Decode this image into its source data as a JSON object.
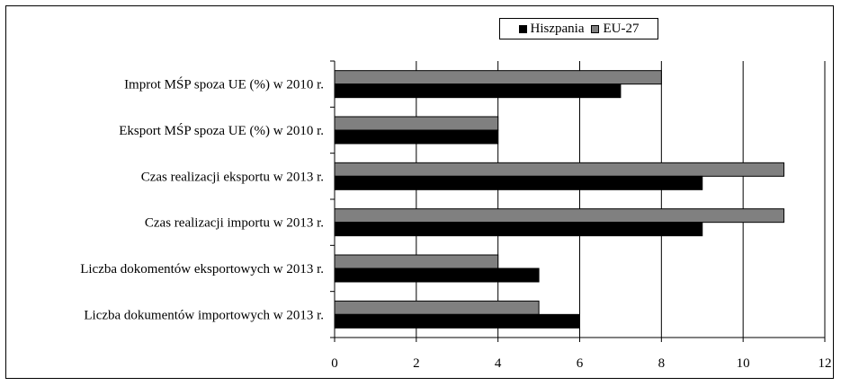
{
  "chart_data": {
    "type": "bar",
    "orientation": "horizontal",
    "categories": [
      "Improt MŚP spoza UE (%) w 2010 r.",
      "Eksport MŚP spoza UE (%) w 2010 r.",
      "Czas realizacji eksportu w 2013 r.",
      "Czas realizacji importu w 2013 r.",
      "Liczba dokomentów eksportowych w 2013 r.",
      "Liczba dokumentów importowych w 2013 r."
    ],
    "series": [
      {
        "name": "Hiszpania",
        "color": "#000000",
        "values": [
          7,
          4,
          9,
          9,
          5,
          6
        ]
      },
      {
        "name": "EU-27",
        "color": "#808080",
        "values": [
          8,
          4,
          11,
          11,
          4,
          5
        ]
      }
    ],
    "xlim": [
      0,
      12
    ],
    "xticks": [
      "0",
      "2",
      "4",
      "6",
      "8",
      "10",
      "12"
    ],
    "grid": "vertical",
    "legend_position": "top"
  }
}
